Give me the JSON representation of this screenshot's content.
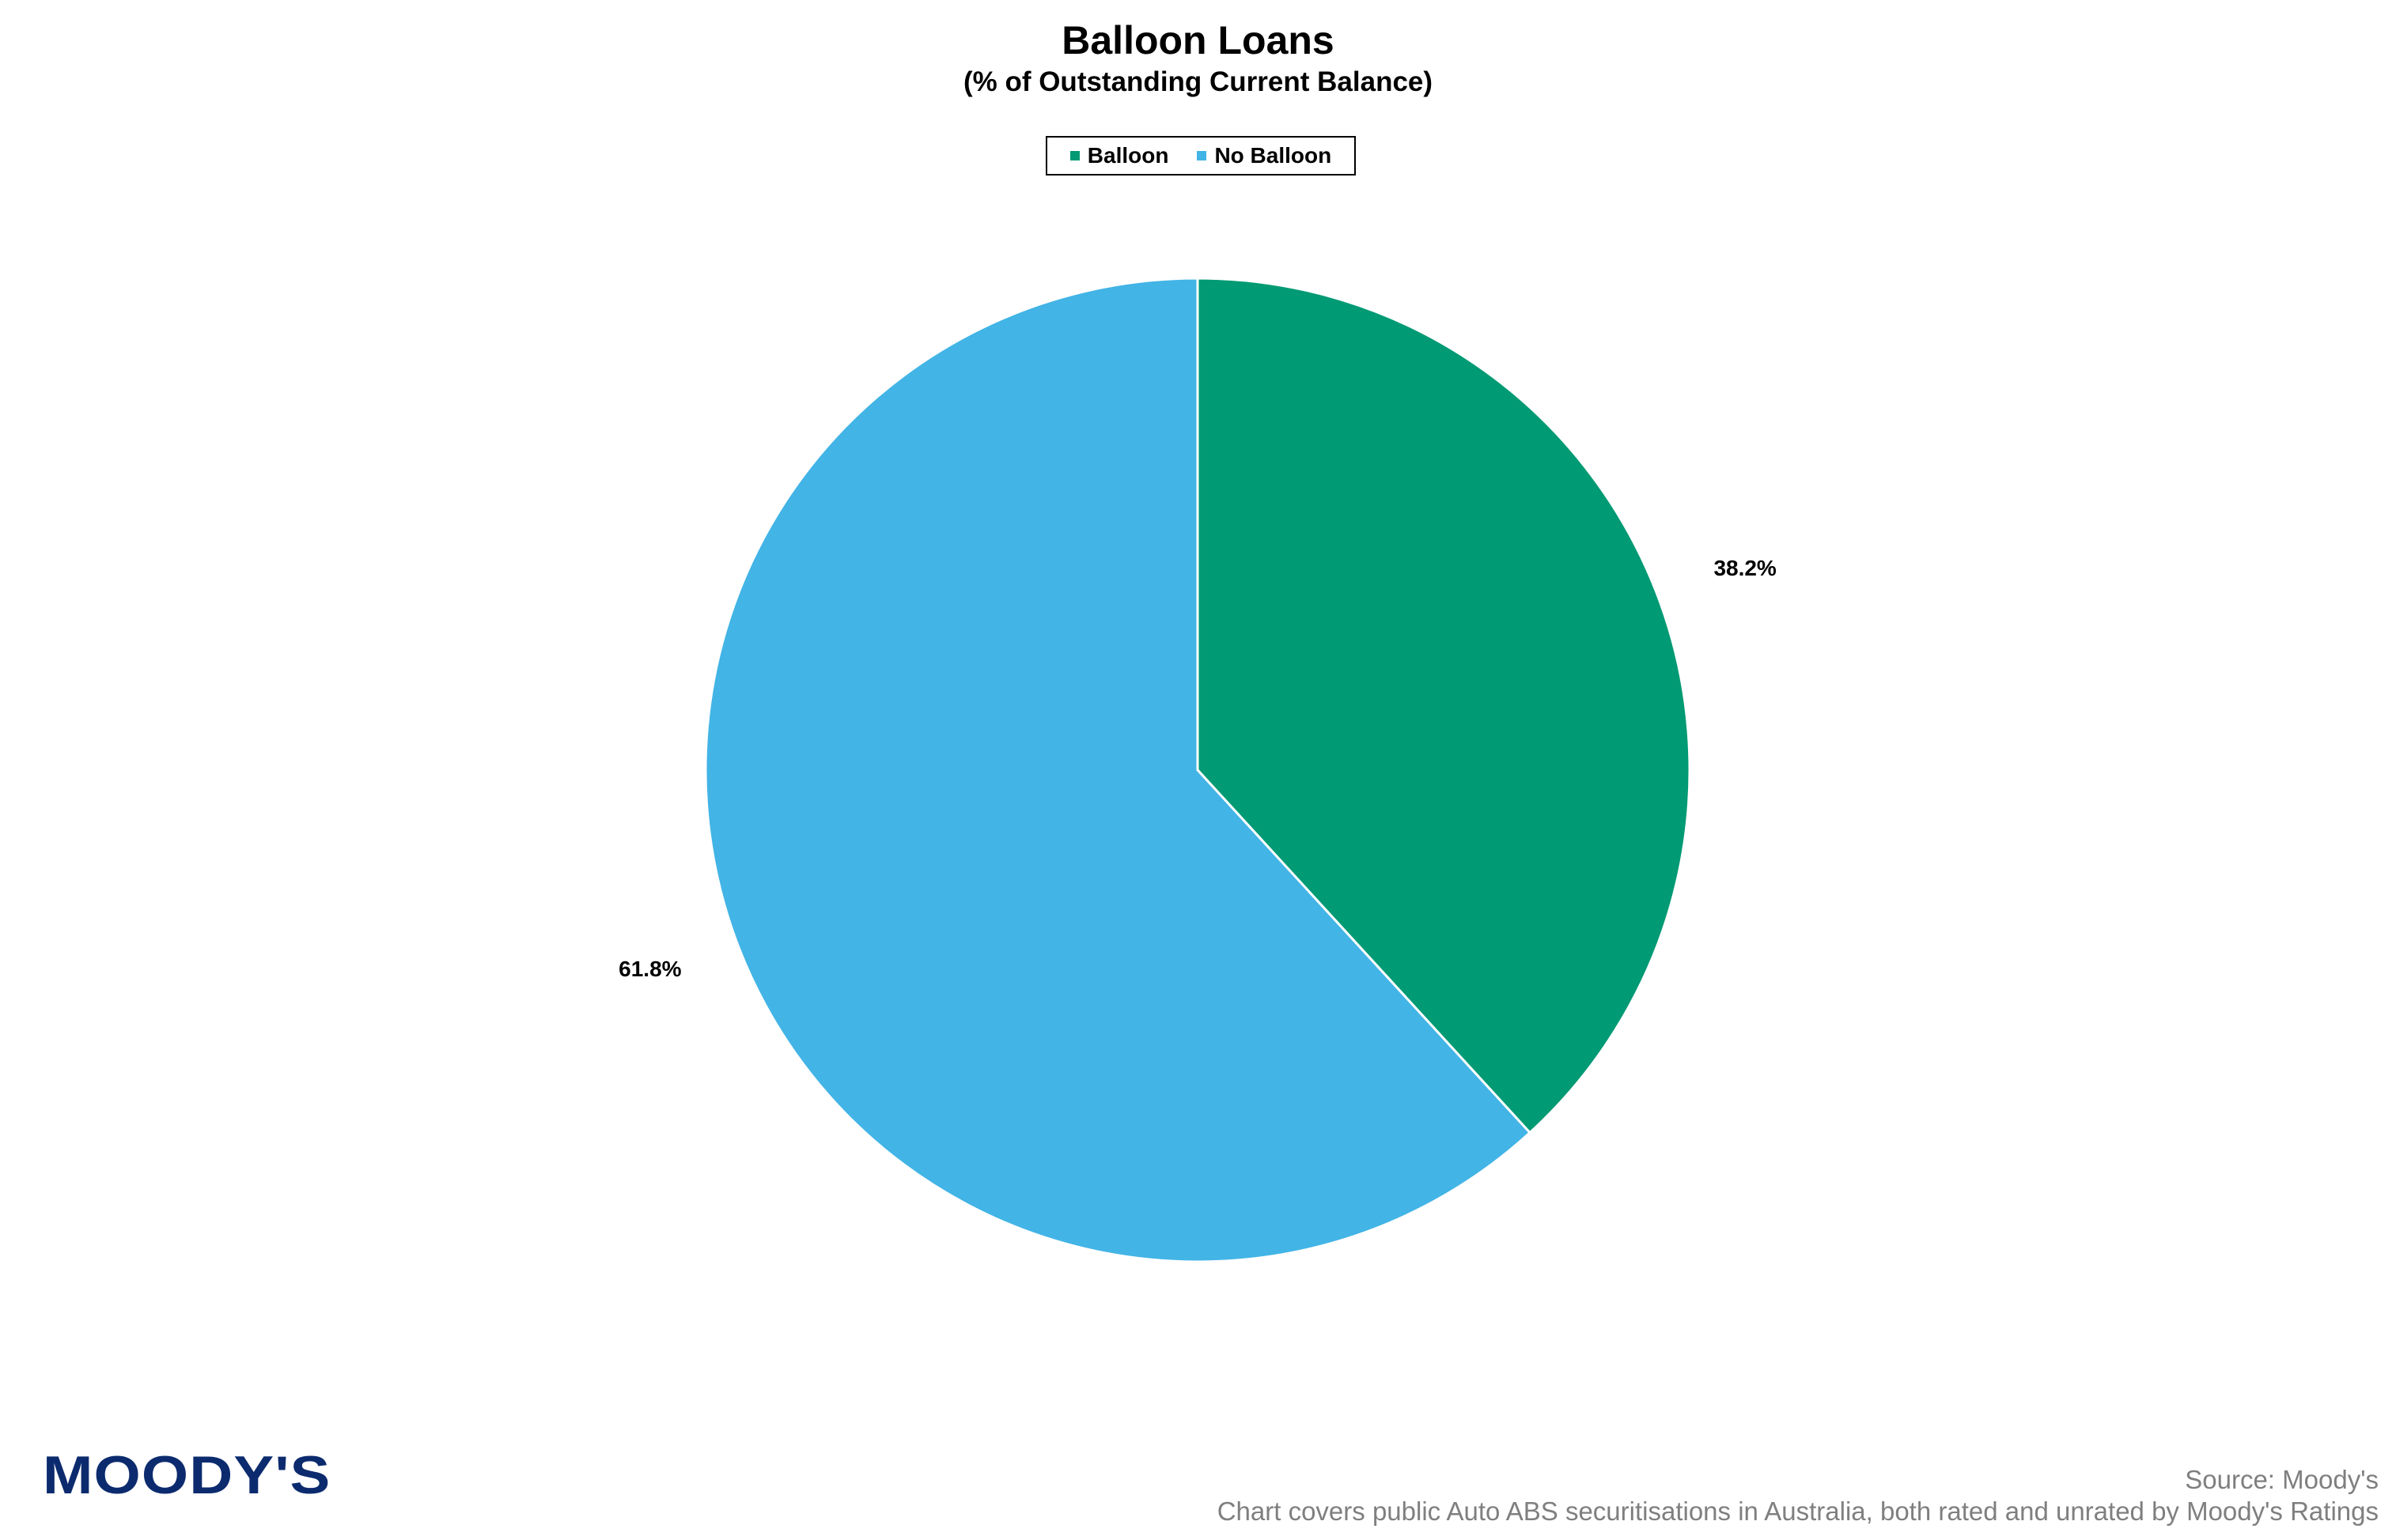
{
  "chart_data": {
    "type": "pie",
    "title": "Balloon Loans",
    "subtitle": "(% of Outstanding Current Balance)",
    "slices": [
      {
        "name": "Balloon",
        "value": 38.2,
        "label": "38.2%",
        "color": "#009A74"
      },
      {
        "name": "No Balloon",
        "value": 61.8,
        "label": "61.8%",
        "color": "#42B4E6"
      }
    ],
    "legend_position": "top-center",
    "start_angle": "12 o'clock",
    "direction": "clockwise"
  },
  "branding": {
    "logo_text": "MOODY'S",
    "logo_color": "#0C2B6E"
  },
  "footer": {
    "source": "Source: Moody's",
    "note": "Chart covers public Auto ABS securitisations in Australia, both rated and unrated by Moody's Ratings"
  }
}
